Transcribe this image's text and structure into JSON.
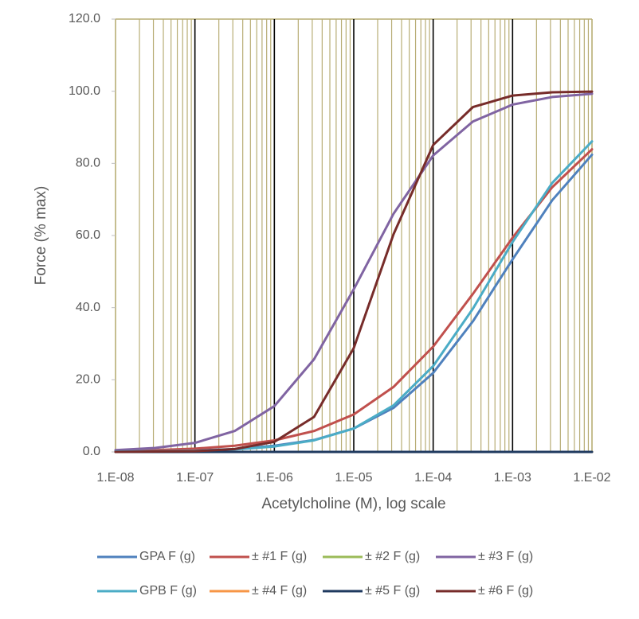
{
  "chart_data": {
    "type": "line",
    "x_label": "Acetylcholine (M), log scale",
    "y_label": "Force (% max)",
    "x": [
      1e-08,
      3.162e-08,
      1e-07,
      3.162e-07,
      1e-06,
      3.162e-06,
      1e-05,
      3.162e-05,
      0.0001,
      0.0003162,
      0.001,
      0.003162,
      0.01
    ],
    "series": [
      {
        "name": "GPA F (g)",
        "color": "#4f81bd",
        "values": [
          0.1,
          0.2,
          0.4,
          0.8,
          1.7,
          3.3,
          6.5,
          12.2,
          21.9,
          36.2,
          53.4,
          69.8,
          82.4
        ]
      },
      {
        "name": "± #1 F (g)",
        "color": "#c0504d",
        "values": [
          0.3,
          0.5,
          0.9,
          1.7,
          3.2,
          5.8,
          10.4,
          18.0,
          29.2,
          43.8,
          59.4,
          73.4,
          83.9
        ]
      },
      {
        "name": "± #2 F (g)",
        "color": "#9bbb59",
        "values": [
          0,
          0,
          0,
          0,
          0,
          0,
          0,
          0,
          0,
          0,
          0,
          0,
          0
        ]
      },
      {
        "name": "± #3 F (g)",
        "color": "#8064a2",
        "values": [
          0.5,
          1.1,
          2.5,
          5.8,
          12.7,
          25.7,
          45.1,
          66.0,
          82.2,
          91.6,
          96.3,
          98.4,
          99.3
        ]
      },
      {
        "name": "GPB F (g)",
        "color": "#4bacc6",
        "values": [
          0.1,
          0.2,
          0.3,
          0.7,
          1.5,
          3.2,
          6.5,
          12.9,
          23.8,
          39.7,
          58.2,
          74.6,
          86.1
        ]
      },
      {
        "name": "± #4 F (g)",
        "color": "#f79646",
        "values": [
          0,
          0,
          0,
          0,
          0,
          0,
          0,
          0,
          0,
          0,
          0,
          0,
          0
        ]
      },
      {
        "name": "± #5 F (g)",
        "color": "#1f3a5f",
        "values": [
          0,
          0,
          0,
          0,
          0,
          0,
          0,
          0,
          0,
          0,
          0,
          0,
          0
        ]
      },
      {
        "name": "± #6 F (g)",
        "color": "#772c2a",
        "values": [
          0.0,
          0.1,
          0.2,
          0.8,
          2.8,
          9.7,
          28.8,
          60.3,
          85.1,
          95.6,
          98.8,
          99.7,
          99.9
        ]
      }
    ],
    "x_log": true,
    "xlim": [
      1e-08,
      0.01
    ],
    "xticks": [
      {
        "value": 1e-08,
        "label": "1.E-08"
      },
      {
        "value": 1e-07,
        "label": "1.E-07"
      },
      {
        "value": 1e-06,
        "label": "1.E-06"
      },
      {
        "value": 1e-05,
        "label": "1.E-05"
      },
      {
        "value": 0.0001,
        "label": "1.E-04"
      },
      {
        "value": 0.001,
        "label": "1.E-03"
      },
      {
        "value": 0.01,
        "label": "1.E-02"
      }
    ],
    "ylim": [
      0,
      120
    ],
    "yticks": [
      {
        "value": 0,
        "label": "0.0"
      },
      {
        "value": 20,
        "label": "20.0"
      },
      {
        "value": 40,
        "label": "40.0"
      },
      {
        "value": 60,
        "label": "60.0"
      },
      {
        "value": 80,
        "label": "80.0"
      },
      {
        "value": 100,
        "label": "100.0"
      },
      {
        "value": 120,
        "label": "120.0"
      }
    ],
    "grid": true,
    "minor_grid": true,
    "legend": "bottom"
  }
}
